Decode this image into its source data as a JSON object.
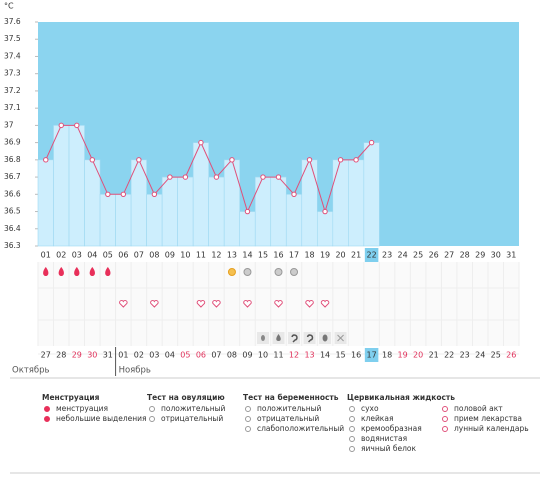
{
  "chart_data": {
    "type": "line",
    "y_label": "°C",
    "categories": [
      "01",
      "02",
      "03",
      "04",
      "05",
      "06",
      "07",
      "08",
      "09",
      "10",
      "11",
      "12",
      "13",
      "14",
      "15",
      "16",
      "17",
      "18",
      "19",
      "20",
      "21",
      "22",
      "23",
      "24",
      "25",
      "26",
      "27",
      "28",
      "29",
      "30",
      "31"
    ],
    "values": [
      36.8,
      37.0,
      37.0,
      36.8,
      36.6,
      36.6,
      36.8,
      36.6,
      36.7,
      36.7,
      36.9,
      36.7,
      36.8,
      36.5,
      36.7,
      36.7,
      36.6,
      36.8,
      36.5,
      36.8,
      36.8,
      36.9,
      null,
      null,
      null,
      null,
      null,
      null,
      null,
      null,
      null
    ],
    "ylim": [
      36.3,
      37.6
    ],
    "yticks": [
      36.3,
      36.4,
      36.5,
      36.6,
      36.7,
      36.8,
      36.9,
      37,
      37.1,
      37.2,
      37.3,
      37.4,
      37.5,
      37.6
    ],
    "color": "#e0507a",
    "bar_color": "#cdeefd",
    "background": "#8bd4ef",
    "highlight_index": 21
  },
  "calendar": {
    "dates": [
      "27",
      "28",
      "29",
      "30",
      "31",
      "01",
      "02",
      "03",
      "04",
      "05",
      "06",
      "07",
      "08",
      "09",
      "10",
      "11",
      "12",
      "13",
      "14",
      "15",
      "16",
      "17",
      "18",
      "19",
      "20",
      "21",
      "22",
      "23",
      "24",
      "25",
      "26"
    ],
    "weekend": [
      false,
      false,
      true,
      true,
      false,
      false,
      false,
      false,
      false,
      true,
      true,
      false,
      false,
      false,
      false,
      false,
      true,
      true,
      false,
      false,
      false,
      false,
      false,
      true,
      true,
      false,
      false,
      false,
      false,
      false,
      true
    ],
    "months": [
      {
        "label": "Октябрь",
        "start": 0
      },
      {
        "label": "Ноябрь",
        "start": 5
      }
    ]
  },
  "events": {
    "menstruation": [
      0,
      1,
      2,
      3,
      4
    ],
    "ovulation_positive": [
      12
    ],
    "ovulation_negative": [
      13,
      15,
      16
    ],
    "intercourse": [
      5,
      7,
      10,
      11,
      13,
      15,
      17,
      18
    ],
    "fluid_egg": [
      14
    ],
    "fluid_watery": [
      15
    ],
    "fluid_creamy": [
      16,
      17
    ],
    "fluid_white": [
      18
    ],
    "fluid_dry": [
      19
    ]
  },
  "legend": [
    {
      "title": "Менструация",
      "items": [
        "менструация",
        "небольшие выделения"
      ]
    },
    {
      "title": "Тест на овуляцию",
      "items": [
        "положительный",
        "отрицательный"
      ]
    },
    {
      "title": "Тест на беременность",
      "items": [
        "положительный",
        "отрицательный",
        "слабоположительный"
      ]
    },
    {
      "title": "Цервикальная жидкость",
      "items": [
        "сухо",
        "клейкая",
        "кремообразная",
        "водянистая",
        "яичный белок"
      ]
    },
    {
      "items": [
        "половой акт",
        "прием лекарства",
        "лунный календарь"
      ]
    }
  ]
}
